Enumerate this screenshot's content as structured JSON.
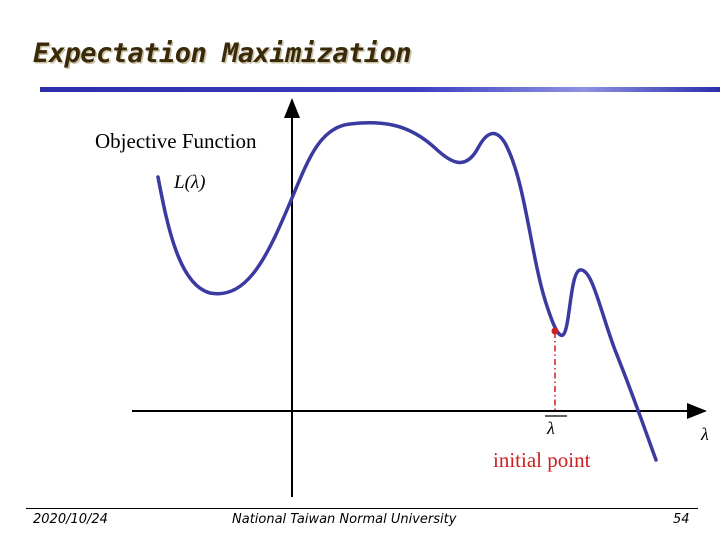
{
  "slide": {
    "title": "Expectation Maximization",
    "accent_color": "#2b2faa"
  },
  "diagram": {
    "objective_label": "Objective Function",
    "function_label": "L(λ)",
    "x_axis_label": "λ",
    "initial_value_label": "λ",
    "initial_point_label": "initial point",
    "curve_color": "#3a3aa0",
    "point_color": "#cc1f1f"
  },
  "footer": {
    "date": "2020/10/24",
    "institution": "National Taiwan Normal University",
    "page_number": "54"
  }
}
